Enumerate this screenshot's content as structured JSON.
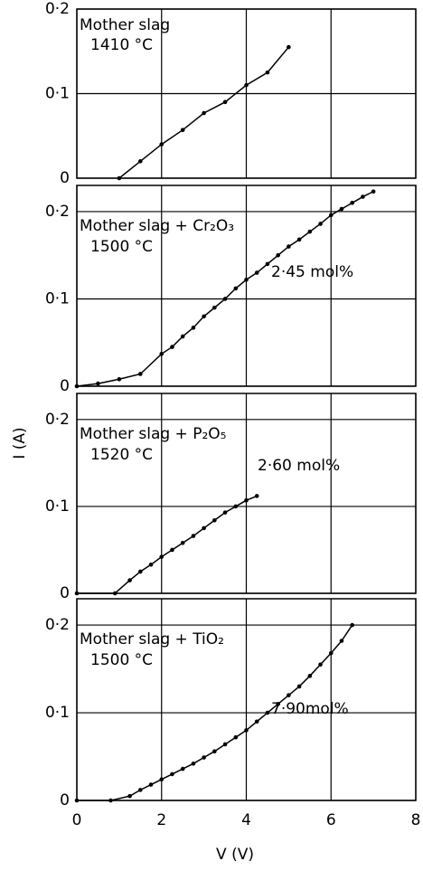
{
  "axis_labels": {
    "x": "V (V)",
    "y": "I (A)"
  },
  "chart_data": [
    {
      "type": "line",
      "title": "Mother slag",
      "annotations": [
        "1410 °C"
      ],
      "x": [
        1.0,
        1.5,
        2.0,
        2.5,
        3.0,
        3.5,
        4.0,
        4.5,
        5.0
      ],
      "values": [
        0.0,
        0.02,
        0.04,
        0.057,
        0.077,
        0.09,
        0.11,
        0.125,
        0.155
      ],
      "color": "#000000",
      "xlim": [
        0,
        8
      ],
      "xticks": [
        0,
        2,
        4,
        6,
        8
      ],
      "ylim": [
        0,
        0.2
      ],
      "yticks": [
        0,
        {
          "value": 0.1,
          "label": "0·1"
        },
        {
          "value": 0.2,
          "label": "0·2"
        }
      ],
      "grid": true
    },
    {
      "type": "line",
      "title": "Mother slag + Cr₂O₃",
      "annotations": [
        "1500 °C",
        "2·45 mol%"
      ],
      "x": [
        0,
        0.5,
        1.0,
        1.5,
        2.0,
        2.25,
        2.5,
        2.75,
        3.0,
        3.25,
        3.5,
        3.75,
        4.0,
        4.25,
        4.5,
        4.75,
        5.0,
        5.25,
        5.5,
        5.75,
        6.0,
        6.25,
        6.5,
        6.75,
        7.0
      ],
      "values": [
        0,
        0.003,
        0.008,
        0.014,
        0.037,
        0.045,
        0.057,
        0.067,
        0.08,
        0.09,
        0.1,
        0.112,
        0.122,
        0.13,
        0.14,
        0.15,
        0.16,
        0.168,
        0.177,
        0.186,
        0.196,
        0.203,
        0.21,
        0.217,
        0.223
      ],
      "color": "#000000",
      "xlim": [
        0,
        8
      ],
      "xticks": [
        0,
        2,
        4,
        6,
        8
      ],
      "ylim": [
        0,
        0.23
      ],
      "yticks": [
        0,
        {
          "value": 0.1,
          "label": "0·1"
        },
        {
          "value": 0.2,
          "label": "0·2"
        }
      ],
      "grid": true
    },
    {
      "type": "line",
      "title": "Mother slag + P₂O₅",
      "annotations": [
        "1520 °C",
        "2·60 mol%"
      ],
      "x": [
        0,
        0.9,
        1.25,
        1.5,
        1.75,
        2.0,
        2.25,
        2.5,
        2.75,
        3.0,
        3.25,
        3.5,
        3.75,
        4.0,
        4.25
      ],
      "values": [
        0,
        0,
        0.015,
        0.025,
        0.033,
        0.042,
        0.05,
        0.058,
        0.066,
        0.075,
        0.084,
        0.093,
        0.1,
        0.107,
        0.112
      ],
      "color": "#000000",
      "xlim": [
        0,
        8
      ],
      "xticks": [
        0,
        2,
        4,
        6,
        8
      ],
      "ylim": [
        0,
        0.23
      ],
      "yticks": [
        0,
        {
          "value": 0.1,
          "label": "0·1"
        },
        {
          "value": 0.2,
          "label": "0·2"
        }
      ],
      "grid": true
    },
    {
      "type": "line",
      "title": "Mother slag + TiO₂",
      "annotations": [
        "1500 °C",
        "7·90mol%"
      ],
      "x": [
        0,
        0.8,
        1.25,
        1.5,
        1.75,
        2.0,
        2.25,
        2.5,
        2.75,
        3.0,
        3.25,
        3.5,
        3.75,
        4.0,
        4.25,
        4.5,
        4.75,
        5.0,
        5.25,
        5.5,
        5.75,
        6.0,
        6.25,
        6.5
      ],
      "values": [
        0,
        0,
        0.005,
        0.012,
        0.018,
        0.024,
        0.03,
        0.036,
        0.042,
        0.049,
        0.056,
        0.064,
        0.072,
        0.08,
        0.09,
        0.1,
        0.11,
        0.12,
        0.13,
        0.142,
        0.155,
        0.168,
        0.182,
        0.2
      ],
      "color": "#000000",
      "xlim": [
        0,
        8
      ],
      "xticks": [
        0,
        2,
        4,
        6,
        8
      ],
      "ylim": [
        0,
        0.23
      ],
      "yticks": [
        0,
        {
          "value": 0.1,
          "label": "0·1"
        },
        {
          "value": 0.2,
          "label": "0·2"
        }
      ],
      "grid": true
    }
  ]
}
